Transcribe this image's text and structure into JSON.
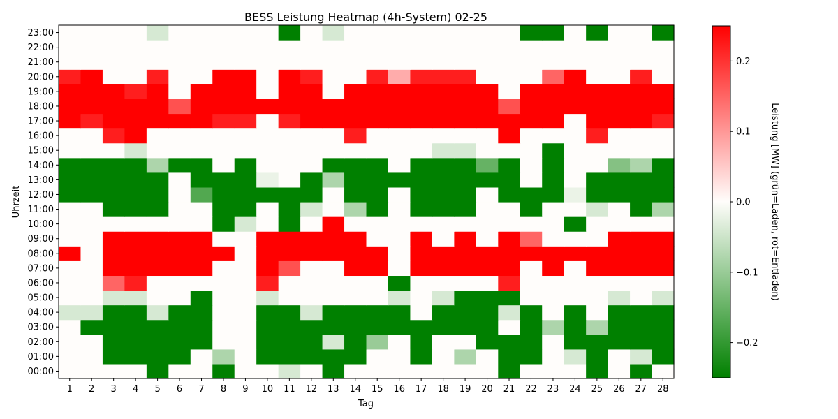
{
  "chart_data": {
    "type": "heatmap",
    "title": "BESS Leistung Heatmap (4h-System) 02-25",
    "xlabel": "Tag",
    "ylabel": "Uhrzeit",
    "x_categories": [
      "1",
      "2",
      "3",
      "4",
      "5",
      "6",
      "7",
      "8",
      "9",
      "10",
      "11",
      "12",
      "13",
      "14",
      "15",
      "16",
      "17",
      "18",
      "19",
      "20",
      "21",
      "22",
      "23",
      "24",
      "25",
      "26",
      "27",
      "28"
    ],
    "y_categories": [
      "00:00",
      "01:00",
      "02:00",
      "03:00",
      "04:00",
      "05:00",
      "06:00",
      "07:00",
      "08:00",
      "09:00",
      "10:00",
      "11:00",
      "12:00",
      "13:00",
      "14:00",
      "15:00",
      "16:00",
      "17:00",
      "18:00",
      "19:00",
      "20:00",
      "21:00",
      "22:00",
      "23:00"
    ],
    "values_by_hour": [
      [
        0,
        0,
        0,
        0,
        -0.25,
        0,
        0,
        -0.25,
        0,
        0,
        -0.04,
        0,
        -0.25,
        0,
        0,
        0,
        0,
        0,
        0,
        0,
        -0.25,
        0,
        0,
        0,
        -0.25,
        0,
        -0.25,
        0
      ],
      [
        0,
        0,
        -0.25,
        -0.25,
        -0.25,
        -0.25,
        0,
        -0.08,
        0,
        -0.25,
        -0.25,
        -0.25,
        -0.25,
        -0.25,
        0,
        0,
        -0.25,
        0,
        -0.08,
        0,
        -0.25,
        -0.25,
        0,
        -0.04,
        -0.25,
        0,
        -0.04,
        -0.25
      ],
      [
        0,
        0,
        -0.25,
        -0.25,
        -0.25,
        -0.25,
        -0.25,
        0,
        0,
        -0.25,
        -0.25,
        -0.25,
        -0.04,
        -0.25,
        -0.1,
        0,
        -0.25,
        0,
        0,
        -0.25,
        -0.25,
        -0.25,
        0,
        -0.25,
        -0.25,
        -0.25,
        -0.25,
        -0.25
      ],
      [
        0,
        -0.25,
        -0.25,
        -0.25,
        -0.25,
        -0.25,
        -0.25,
        0,
        0,
        -0.25,
        -0.25,
        -0.25,
        -0.25,
        -0.25,
        -0.25,
        -0.25,
        -0.25,
        -0.25,
        -0.25,
        -0.25,
        0,
        -0.25,
        -0.08,
        -0.25,
        -0.08,
        -0.25,
        -0.25,
        -0.25
      ],
      [
        -0.04,
        -0.04,
        -0.25,
        -0.25,
        -0.04,
        -0.25,
        -0.25,
        0,
        0,
        -0.25,
        -0.25,
        -0.04,
        -0.25,
        -0.25,
        -0.25,
        -0.25,
        0,
        -0.25,
        -0.25,
        -0.25,
        -0.04,
        -0.25,
        0,
        -0.25,
        0,
        -0.25,
        -0.25,
        -0.25
      ],
      [
        0,
        0,
        -0.04,
        -0.04,
        0,
        0,
        -0.25,
        0,
        0,
        -0.04,
        0,
        0,
        0,
        0,
        0,
        -0.04,
        0,
        -0.04,
        -0.25,
        -0.25,
        -0.25,
        0,
        0,
        0,
        0,
        -0.04,
        0,
        -0.04
      ],
      [
        0,
        0,
        0.15,
        0.22,
        0,
        0,
        0,
        0,
        0,
        0.22,
        0,
        0,
        0,
        0,
        0,
        -0.25,
        0,
        0,
        0,
        0,
        0.22,
        0,
        0,
        0,
        0,
        0,
        0,
        0
      ],
      [
        0,
        0,
        0.25,
        0.25,
        0.25,
        0.25,
        0.25,
        0,
        0,
        0.25,
        0.17,
        0,
        0,
        0.25,
        0.25,
        0,
        0.25,
        0.25,
        0.25,
        0.25,
        0.25,
        0,
        0.25,
        0,
        0.25,
        0.25,
        0.25,
        0.25
      ],
      [
        0.25,
        0,
        0.25,
        0.25,
        0.25,
        0.25,
        0.25,
        0.25,
        0,
        0.25,
        0.25,
        0.25,
        0.25,
        0.25,
        0.25,
        0,
        0.25,
        0.25,
        0.25,
        0.25,
        0.25,
        0.25,
        0.25,
        0.25,
        0.25,
        0.25,
        0.25,
        0.25
      ],
      [
        0,
        0,
        0.25,
        0.25,
        0.25,
        0.25,
        0.25,
        0,
        0,
        0.25,
        0.25,
        0.25,
        0.25,
        0.25,
        0,
        0,
        0.25,
        0,
        0.25,
        0,
        0.25,
        0.15,
        0,
        0,
        0,
        0.25,
        0.25,
        0.25
      ],
      [
        0,
        0,
        0,
        0,
        0,
        0,
        0,
        -0.25,
        -0.04,
        0,
        -0.25,
        0,
        0.25,
        0,
        0,
        0,
        0,
        0,
        0,
        0,
        0,
        0,
        0,
        -0.25,
        0,
        0,
        0,
        0
      ],
      [
        0,
        0,
        -0.25,
        -0.25,
        -0.25,
        0,
        0,
        -0.25,
        -0.25,
        0,
        -0.25,
        -0.04,
        0,
        -0.08,
        -0.25,
        0,
        -0.25,
        -0.25,
        -0.25,
        0,
        0,
        -0.25,
        0,
        0,
        -0.04,
        0,
        -0.25,
        -0.08
      ],
      [
        -0.25,
        -0.25,
        -0.25,
        -0.25,
        -0.25,
        0,
        -0.17,
        -0.25,
        -0.25,
        -0.25,
        -0.25,
        -0.25,
        0,
        -0.25,
        -0.25,
        0,
        -0.25,
        -0.25,
        -0.25,
        0,
        -0.25,
        -0.25,
        -0.25,
        -0.02,
        -0.25,
        -0.25,
        -0.25,
        -0.25
      ],
      [
        -0.25,
        -0.25,
        -0.25,
        -0.25,
        -0.25,
        0,
        -0.25,
        -0.25,
        -0.25,
        -0.02,
        0,
        -0.25,
        -0.08,
        -0.25,
        -0.25,
        -0.25,
        -0.25,
        -0.25,
        -0.25,
        -0.25,
        -0.25,
        0,
        -0.25,
        0,
        -0.25,
        -0.25,
        -0.25,
        -0.25
      ],
      [
        -0.25,
        -0.25,
        -0.25,
        -0.25,
        -0.08,
        -0.25,
        -0.25,
        0,
        -0.25,
        0,
        0,
        0,
        -0.25,
        -0.25,
        -0.25,
        0,
        -0.25,
        -0.25,
        -0.25,
        -0.15,
        -0.25,
        0,
        -0.25,
        0,
        0,
        -0.12,
        -0.08,
        -0.25
      ],
      [
        0,
        0,
        0,
        -0.04,
        0,
        0,
        0,
        0,
        0,
        0,
        0,
        0,
        0,
        0,
        0,
        0,
        0,
        -0.04,
        -0.04,
        0,
        0,
        0,
        -0.25,
        0,
        0,
        0,
        0,
        0
      ],
      [
        0,
        0,
        0.22,
        0.25,
        0,
        0,
        0,
        0,
        0,
        0,
        0,
        0,
        0,
        0.22,
        0,
        0,
        0,
        0,
        0,
        0,
        0.25,
        0,
        0,
        0,
        0.22,
        0,
        0,
        0
      ],
      [
        0.25,
        0.22,
        0.25,
        0.25,
        0.25,
        0.25,
        0.25,
        0.22,
        0.22,
        0,
        0.22,
        0.25,
        0.25,
        0.25,
        0.25,
        0.25,
        0.25,
        0.25,
        0.25,
        0.25,
        0.25,
        0.25,
        0.25,
        0,
        0.25,
        0.25,
        0.25,
        0.22
      ],
      [
        0.25,
        0.25,
        0.25,
        0.25,
        0.25,
        0.17,
        0.25,
        0.25,
        0.25,
        0.25,
        0.25,
        0.25,
        0.25,
        0.25,
        0.25,
        0.25,
        0.25,
        0.25,
        0.25,
        0.25,
        0.17,
        0.25,
        0.25,
        0.25,
        0.25,
        0.25,
        0.25,
        0.25
      ],
      [
        0.25,
        0.25,
        0.25,
        0.22,
        0.25,
        0,
        0.25,
        0.25,
        0.25,
        0,
        0.25,
        0.25,
        0,
        0.25,
        0.25,
        0.25,
        0.25,
        0.25,
        0.25,
        0.25,
        0,
        0.25,
        0.25,
        0.25,
        0.25,
        0.25,
        0.25,
        0.25
      ],
      [
        0.22,
        0.25,
        0,
        0,
        0.22,
        0,
        0,
        0.25,
        0.25,
        0,
        0.25,
        0.22,
        0,
        0,
        0.22,
        0.08,
        0.22,
        0.22,
        0.22,
        0,
        0,
        0,
        0.15,
        0.25,
        0,
        0,
        0.22,
        0
      ],
      [
        0,
        0,
        0,
        0,
        0,
        0,
        0,
        0,
        0,
        0,
        0,
        0,
        0,
        0,
        0,
        0,
        0,
        0,
        0,
        0,
        0,
        0,
        0,
        0,
        0,
        0,
        0,
        0
      ],
      [
        0,
        0,
        0,
        0,
        0,
        0,
        0,
        0,
        0,
        0,
        0,
        0,
        0,
        0,
        0,
        0,
        0,
        0,
        0,
        0,
        0,
        0,
        0,
        0,
        0,
        0,
        0,
        0
      ],
      [
        0,
        0,
        0,
        0,
        -0.04,
        0,
        0,
        0,
        0,
        0,
        -0.25,
        0,
        -0.04,
        0,
        0,
        0,
        0,
        0,
        0,
        0,
        0,
        -0.25,
        -0.25,
        0,
        -0.25,
        0,
        0,
        -0.25
      ]
    ],
    "vmin": -0.25,
    "vmax": 0.25,
    "colormap": {
      "negative": "#008000",
      "zero": "#fffdfb",
      "positive": "#ff0000"
    },
    "colorbar": {
      "label": "Leistung [MW] (grün=Laden, rot=Entladen)",
      "ticks": [
        -0.2,
        -0.1,
        0.0,
        0.1,
        0.2
      ],
      "tick_labels": [
        "−0.2",
        "−0.1",
        "0.0",
        "0.1",
        "0.2"
      ]
    },
    "grid": false
  }
}
